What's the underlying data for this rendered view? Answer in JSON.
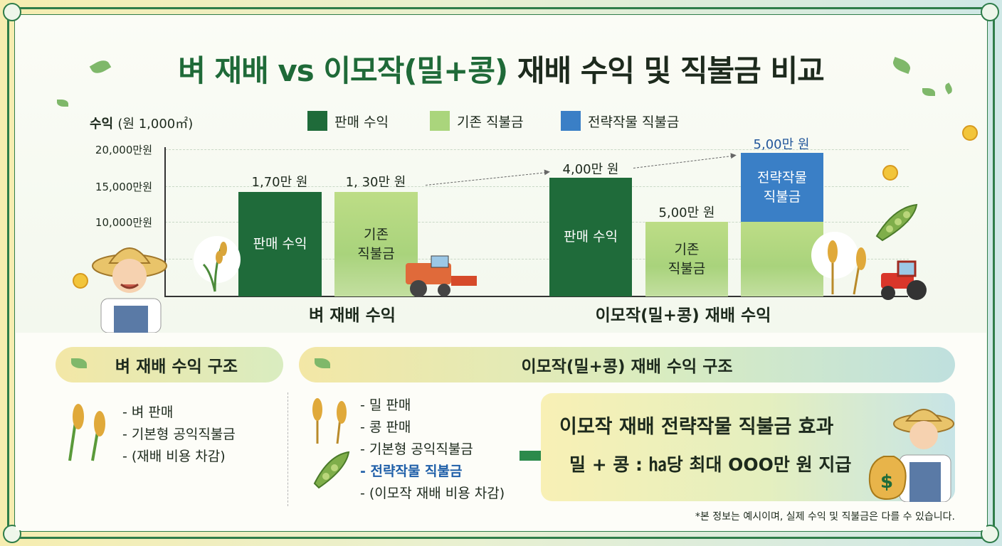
{
  "title": {
    "part1": "벼 재배 vs ",
    "part2": "이모작(밀+콩)",
    "part3": " 재배 수익 및 직불금 비교"
  },
  "colors": {
    "dark_green": "#1f6b3a",
    "light_green": "#aad57c",
    "blue": "#3a7fc6",
    "frame": "#2f7d4a"
  },
  "chart_data": {
    "type": "bar",
    "y_axis_title": "수익",
    "y_axis_unit": "(원 1,000㎡)",
    "y_ticks": [
      "20,000만원",
      "15,000만원",
      "10,000만원"
    ],
    "legend": [
      "판매 수익",
      "기존 직불금",
      "전략작물 직불금"
    ],
    "groups": [
      {
        "label": "벼 재배 수익",
        "bars": [
          {
            "series": "판매 수익",
            "inner_label": "판매 수익",
            "value_label": "1,70만 원"
          },
          {
            "series": "기존 직불금",
            "inner_label": "기존\n직불금",
            "value_label": "1, 30만 원"
          }
        ]
      },
      {
        "label": "이모작(밀+콩) 재배 수익",
        "bars": [
          {
            "series": "판매 수익",
            "inner_label": "판매 수익",
            "value_label": "4,00만 원"
          },
          {
            "series": "기존 직불금",
            "inner_label": "기존\n직불금",
            "value_label": "5,00만 원"
          },
          {
            "series": "전략작물 직불금",
            "inner_label": "전략작물\n직불금",
            "value_label": "5,00만 원"
          }
        ]
      }
    ]
  },
  "rice_structure": {
    "title": "벼 재배 수익 구조",
    "items": [
      "- 벼 판매",
      "- 기본형 공익직불금",
      "- (재배 비용 차감)"
    ]
  },
  "double_structure": {
    "title": "이모작(밀+콩) 재배 수익 구조",
    "items": [
      "- 밀 판매",
      "- 콩 판매",
      "- 기본형 공익직불금",
      "- 전략작물 직불금",
      "- (이모작 재배 비용 차감)"
    ]
  },
  "effect": {
    "title": "이모작 재배 전략작물 직불금 효과",
    "line": "밀 + 콩 : ㏊당 최대 OOO만 원 지급"
  },
  "note": "*본 정보는 예시이며, 실제 수익 및 직불금은 다를 수 있습니다."
}
